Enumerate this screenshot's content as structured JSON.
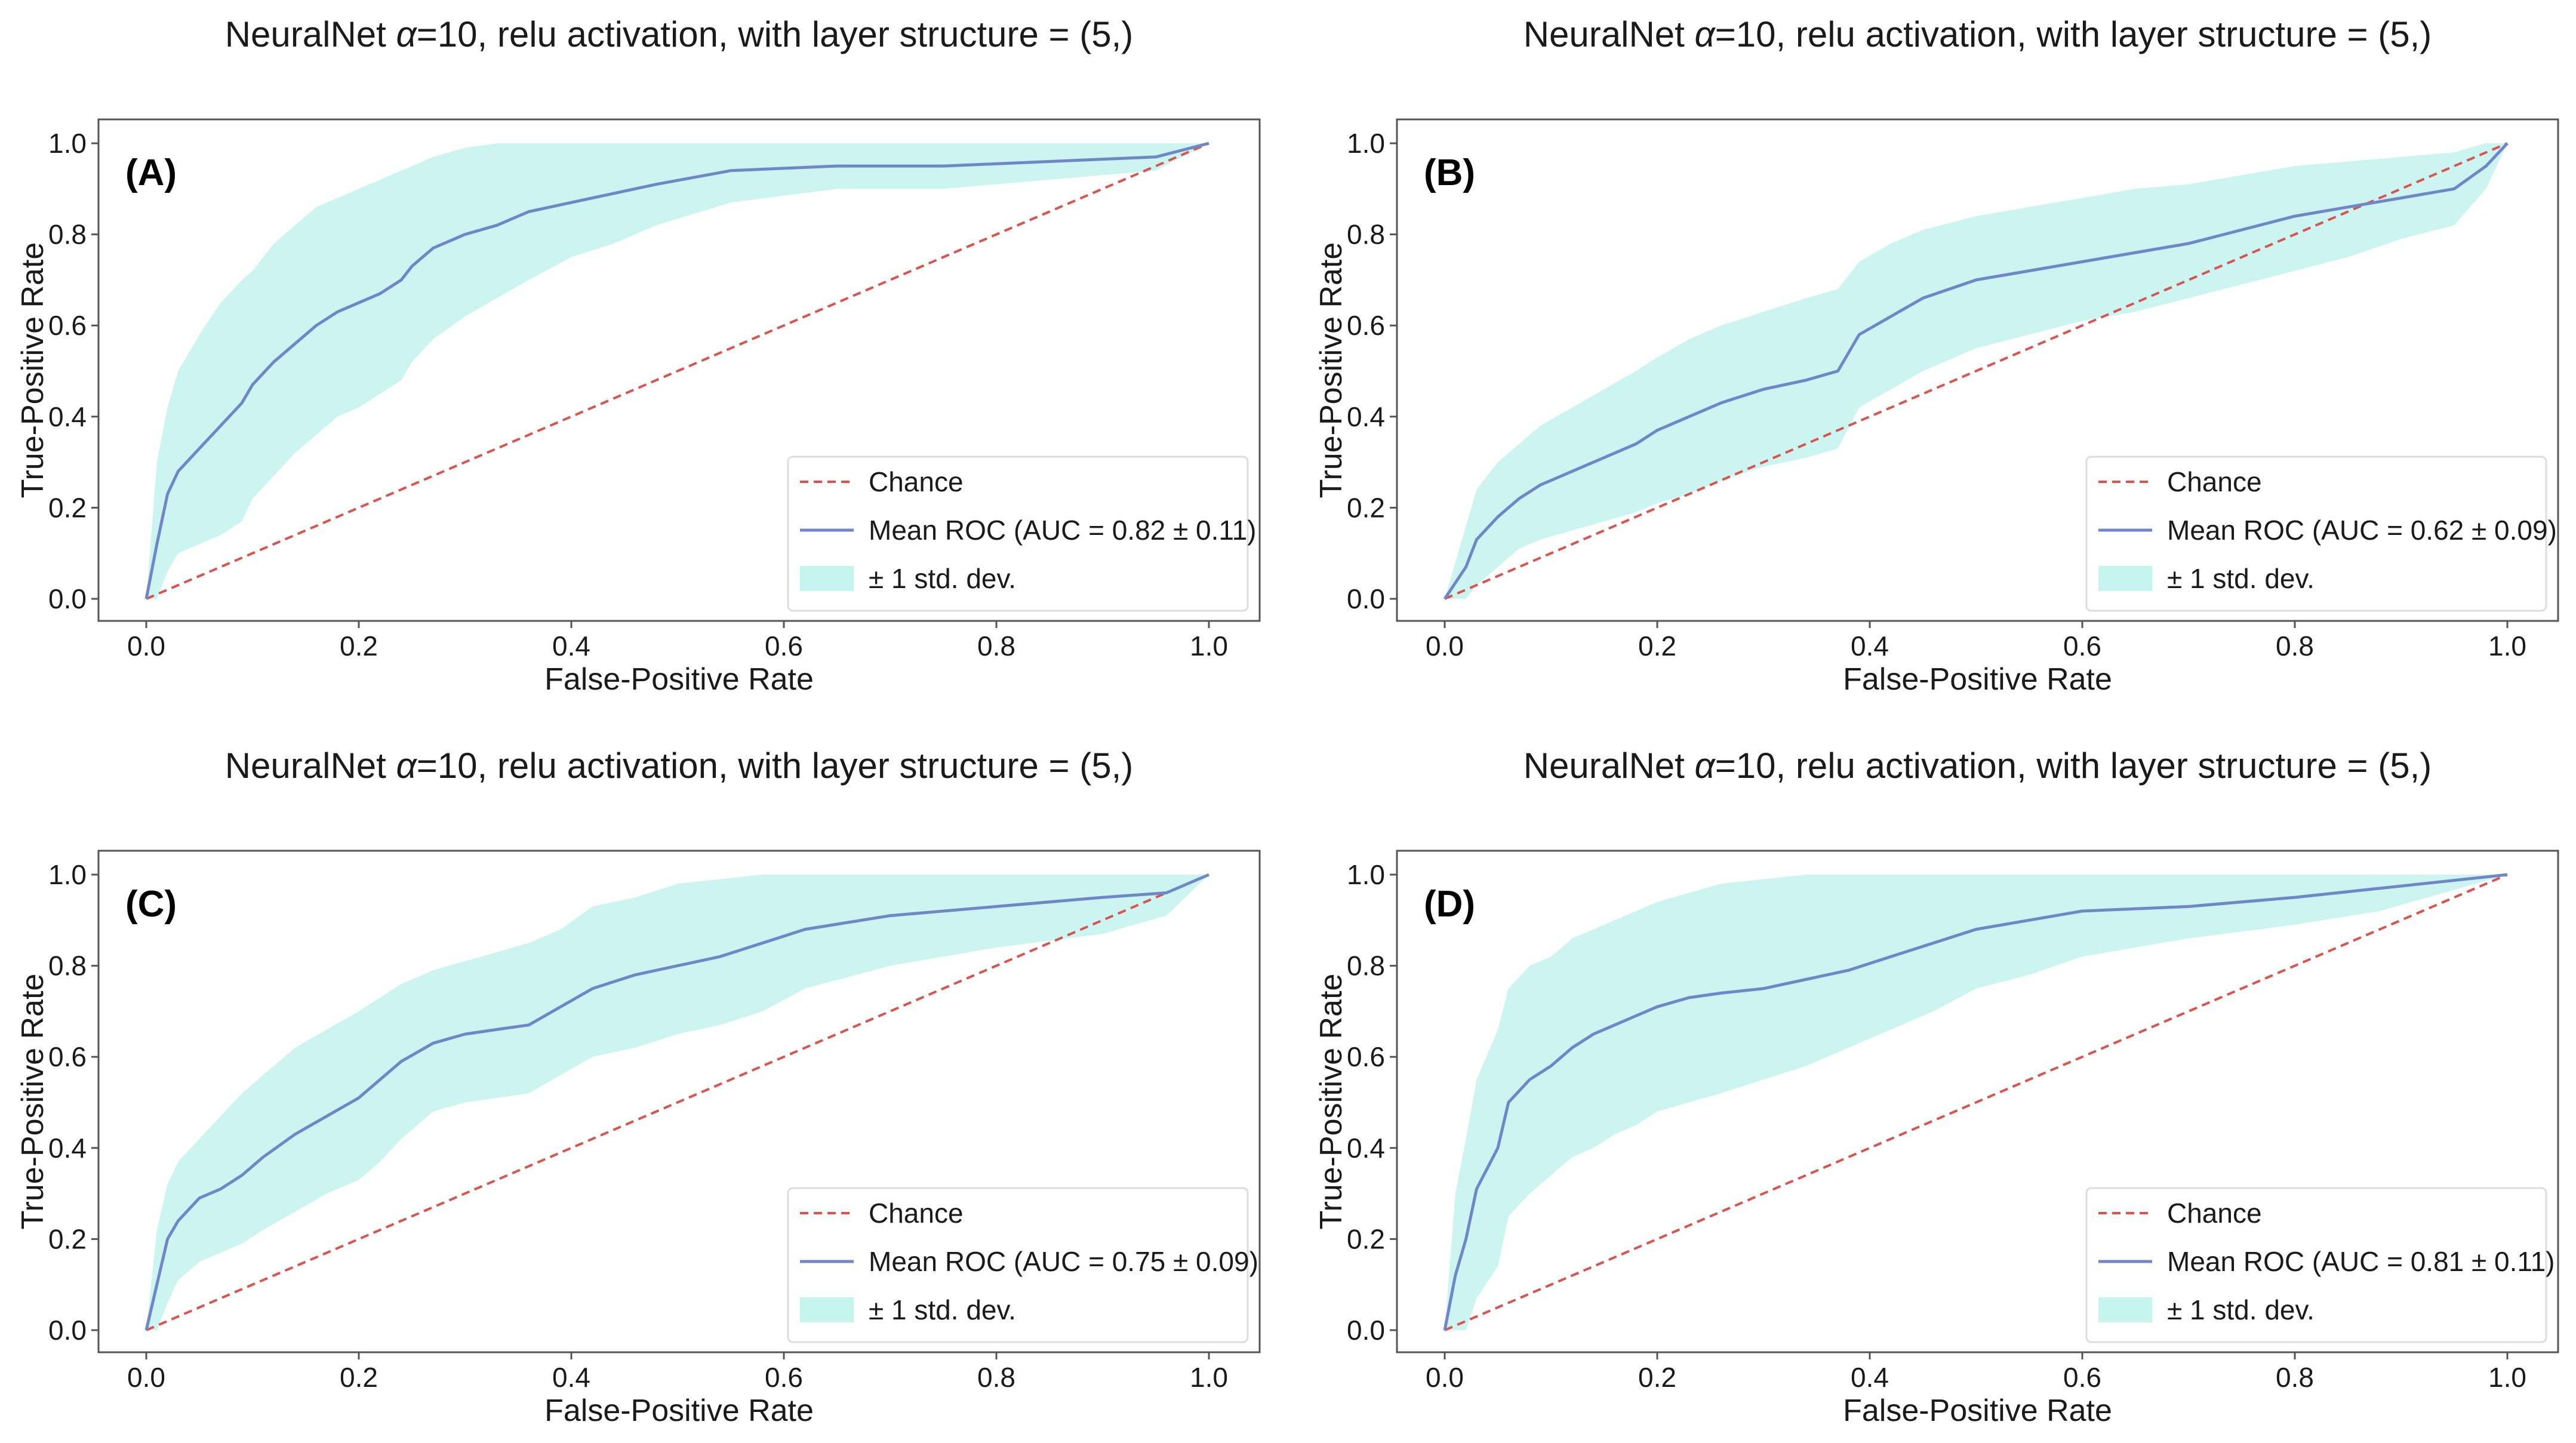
{
  "chart_data": [
    {
      "type": "line",
      "panel_label": "(A)",
      "title_prefix": "NeuralNet ",
      "title_alpha": "α",
      "title_suffix": "=10, relu activation, with layer structure = (5,)",
      "xlabel": "False-Positive Rate",
      "ylabel": "True-Positive Rate",
      "xlim": [
        0,
        1
      ],
      "ylim": [
        0,
        1
      ],
      "xticks": [
        "0.0",
        "0.2",
        "0.4",
        "0.6",
        "0.8",
        "1.0"
      ],
      "yticks": [
        "0.0",
        "0.2",
        "0.4",
        "0.6",
        "0.8",
        "1.0"
      ],
      "legend_position": "lower-right",
      "grid": false,
      "legend": {
        "chance": "Chance",
        "mean": "Mean ROC (AUC = 0.82 ± 0.11)",
        "band": "± 1 std. dev."
      },
      "colors": {
        "chance": "#d9534f",
        "mean": "#6f87c6",
        "band": "#c6f4ef"
      },
      "series": [
        {
          "name": "Chance",
          "x": [
            0,
            1
          ],
          "y": [
            0,
            1
          ]
        },
        {
          "name": "Mean ROC (AUC = 0.82 ± 0.11)",
          "x": [
            0,
            0.01,
            0.02,
            0.03,
            0.05,
            0.07,
            0.09,
            0.1,
            0.12,
            0.14,
            0.16,
            0.18,
            0.2,
            0.22,
            0.24,
            0.25,
            0.27,
            0.3,
            0.33,
            0.36,
            0.4,
            0.44,
            0.48,
            0.55,
            0.65,
            0.75,
            0.85,
            0.95,
            1.0
          ],
          "y": [
            0,
            0.12,
            0.23,
            0.28,
            0.33,
            0.38,
            0.43,
            0.47,
            0.52,
            0.56,
            0.6,
            0.63,
            0.65,
            0.67,
            0.7,
            0.73,
            0.77,
            0.8,
            0.82,
            0.85,
            0.87,
            0.89,
            0.91,
            0.94,
            0.95,
            0.95,
            0.96,
            0.97,
            1.0
          ]
        },
        {
          "name": "± 1 std. dev.",
          "x": [
            0,
            0.01,
            0.02,
            0.03,
            0.05,
            0.07,
            0.09,
            0.1,
            0.12,
            0.14,
            0.16,
            0.18,
            0.2,
            0.22,
            0.24,
            0.25,
            0.27,
            0.3,
            0.33,
            0.36,
            0.4,
            0.44,
            0.48,
            0.55,
            0.65,
            0.75,
            0.85,
            0.95,
            1.0
          ],
          "upper": [
            0,
            0.3,
            0.42,
            0.5,
            0.58,
            0.65,
            0.7,
            0.72,
            0.78,
            0.82,
            0.86,
            0.88,
            0.9,
            0.92,
            0.94,
            0.95,
            0.97,
            0.99,
            1.0,
            1.0,
            1.0,
            1.0,
            1.0,
            1.0,
            1.0,
            1.0,
            1.0,
            1.0,
            1.0
          ],
          "lower": [
            0,
            0.0,
            0.06,
            0.1,
            0.12,
            0.14,
            0.17,
            0.22,
            0.27,
            0.32,
            0.36,
            0.4,
            0.42,
            0.45,
            0.48,
            0.52,
            0.57,
            0.62,
            0.66,
            0.7,
            0.75,
            0.78,
            0.82,
            0.87,
            0.9,
            0.9,
            0.92,
            0.94,
            1.0
          ]
        }
      ]
    },
    {
      "type": "line",
      "panel_label": "(B)",
      "title_prefix": "NeuralNet ",
      "title_alpha": "α",
      "title_suffix": "=10, relu activation, with layer structure = (5,)",
      "xlabel": "False-Positive Rate",
      "ylabel": "True-Positive Rate",
      "xlim": [
        0,
        1
      ],
      "ylim": [
        0,
        1
      ],
      "xticks": [
        "0.0",
        "0.2",
        "0.4",
        "0.6",
        "0.8",
        "1.0"
      ],
      "yticks": [
        "0.0",
        "0.2",
        "0.4",
        "0.6",
        "0.8",
        "1.0"
      ],
      "legend_position": "lower-right",
      "grid": false,
      "legend": {
        "chance": "Chance",
        "mean": "Mean ROC (AUC = 0.62 ± 0.09)",
        "band": "± 1 std. dev."
      },
      "colors": {
        "chance": "#d9534f",
        "mean": "#6f87c6",
        "band": "#c6f4ef"
      },
      "series": [
        {
          "name": "Chance",
          "x": [
            0,
            1
          ],
          "y": [
            0,
            1
          ]
        },
        {
          "name": "Mean ROC (AUC = 0.62 ± 0.09)",
          "x": [
            0,
            0.02,
            0.03,
            0.05,
            0.07,
            0.09,
            0.12,
            0.15,
            0.18,
            0.2,
            0.23,
            0.26,
            0.3,
            0.34,
            0.37,
            0.39,
            0.42,
            0.45,
            0.5,
            0.55,
            0.6,
            0.65,
            0.7,
            0.75,
            0.8,
            0.85,
            0.9,
            0.95,
            0.98,
            1.0
          ],
          "y": [
            0,
            0.07,
            0.13,
            0.18,
            0.22,
            0.25,
            0.28,
            0.31,
            0.34,
            0.37,
            0.4,
            0.43,
            0.46,
            0.48,
            0.5,
            0.58,
            0.62,
            0.66,
            0.7,
            0.72,
            0.74,
            0.76,
            0.78,
            0.81,
            0.84,
            0.86,
            0.88,
            0.9,
            0.95,
            1.0
          ]
        },
        {
          "name": "± 1 std. dev.",
          "x": [
            0,
            0.02,
            0.03,
            0.05,
            0.07,
            0.09,
            0.12,
            0.15,
            0.18,
            0.2,
            0.23,
            0.26,
            0.3,
            0.34,
            0.37,
            0.39,
            0.42,
            0.45,
            0.5,
            0.55,
            0.6,
            0.65,
            0.7,
            0.75,
            0.8,
            0.85,
            0.9,
            0.95,
            0.98,
            1.0
          ],
          "upper": [
            0,
            0.16,
            0.24,
            0.3,
            0.34,
            0.38,
            0.42,
            0.46,
            0.5,
            0.53,
            0.57,
            0.6,
            0.63,
            0.66,
            0.68,
            0.74,
            0.78,
            0.81,
            0.84,
            0.86,
            0.88,
            0.9,
            0.91,
            0.93,
            0.95,
            0.96,
            0.97,
            0.98,
            1.0,
            1.0
          ],
          "lower": [
            0,
            0.0,
            0.03,
            0.07,
            0.11,
            0.13,
            0.15,
            0.17,
            0.19,
            0.21,
            0.23,
            0.26,
            0.29,
            0.31,
            0.33,
            0.42,
            0.46,
            0.5,
            0.55,
            0.58,
            0.61,
            0.63,
            0.66,
            0.69,
            0.72,
            0.75,
            0.79,
            0.82,
            0.9,
            1.0
          ]
        }
      ]
    },
    {
      "type": "line",
      "panel_label": "(C)",
      "title_prefix": "NeuralNet ",
      "title_alpha": "α",
      "title_suffix": "=10, relu activation, with layer structure = (5,)",
      "xlabel": "False-Positive Rate",
      "ylabel": "True-Positive Rate",
      "xlim": [
        0,
        1
      ],
      "ylim": [
        0,
        1
      ],
      "xticks": [
        "0.0",
        "0.2",
        "0.4",
        "0.6",
        "0.8",
        "1.0"
      ],
      "yticks": [
        "0.0",
        "0.2",
        "0.4",
        "0.6",
        "0.8",
        "1.0"
      ],
      "legend_position": "lower-right",
      "grid": false,
      "legend": {
        "chance": "Chance",
        "mean": "Mean ROC (AUC = 0.75 ± 0.09)",
        "band": "± 1 std. dev."
      },
      "colors": {
        "chance": "#d9534f",
        "mean": "#6f87c6",
        "band": "#c6f4ef"
      },
      "series": [
        {
          "name": "Chance",
          "x": [
            0,
            1
          ],
          "y": [
            0,
            1
          ]
        },
        {
          "name": "Mean ROC (AUC = 0.75 ± 0.09)",
          "x": [
            0,
            0.01,
            0.02,
            0.03,
            0.05,
            0.07,
            0.09,
            0.11,
            0.14,
            0.17,
            0.2,
            0.22,
            0.24,
            0.27,
            0.3,
            0.33,
            0.36,
            0.39,
            0.42,
            0.46,
            0.5,
            0.54,
            0.58,
            0.62,
            0.7,
            0.8,
            0.9,
            0.96,
            1.0
          ],
          "y": [
            0,
            0.1,
            0.2,
            0.24,
            0.29,
            0.31,
            0.34,
            0.38,
            0.43,
            0.47,
            0.51,
            0.55,
            0.59,
            0.63,
            0.65,
            0.66,
            0.67,
            0.71,
            0.75,
            0.78,
            0.8,
            0.82,
            0.85,
            0.88,
            0.91,
            0.93,
            0.95,
            0.96,
            1.0
          ]
        },
        {
          "name": "± 1 std. dev.",
          "x": [
            0,
            0.01,
            0.02,
            0.03,
            0.05,
            0.07,
            0.09,
            0.11,
            0.14,
            0.17,
            0.2,
            0.22,
            0.24,
            0.27,
            0.3,
            0.33,
            0.36,
            0.39,
            0.42,
            0.46,
            0.5,
            0.54,
            0.58,
            0.62,
            0.7,
            0.8,
            0.9,
            0.96,
            1.0
          ],
          "upper": [
            0,
            0.22,
            0.32,
            0.37,
            0.42,
            0.47,
            0.52,
            0.56,
            0.62,
            0.66,
            0.7,
            0.73,
            0.76,
            0.79,
            0.81,
            0.83,
            0.85,
            0.88,
            0.93,
            0.95,
            0.98,
            0.99,
            1.0,
            1.0,
            1.0,
            1.0,
            1.0,
            1.0,
            1.0
          ],
          "lower": [
            0,
            0.0,
            0.06,
            0.11,
            0.15,
            0.17,
            0.19,
            0.22,
            0.26,
            0.3,
            0.33,
            0.37,
            0.42,
            0.48,
            0.5,
            0.51,
            0.52,
            0.56,
            0.6,
            0.62,
            0.65,
            0.67,
            0.7,
            0.75,
            0.8,
            0.84,
            0.87,
            0.91,
            1.0
          ]
        }
      ]
    },
    {
      "type": "line",
      "panel_label": "(D)",
      "title_prefix": "NeuralNet ",
      "title_alpha": "α",
      "title_suffix": "=10, relu activation, with layer structure = (5,)",
      "xlabel": "False-Positive Rate",
      "ylabel": "True-Positive Rate",
      "xlim": [
        0,
        1
      ],
      "ylim": [
        0,
        1
      ],
      "xticks": [
        "0.0",
        "0.2",
        "0.4",
        "0.6",
        "0.8",
        "1.0"
      ],
      "yticks": [
        "0.0",
        "0.2",
        "0.4",
        "0.6",
        "0.8",
        "1.0"
      ],
      "legend_position": "lower-right",
      "grid": false,
      "legend": {
        "chance": "Chance",
        "mean": "Mean ROC (AUC = 0.81 ± 0.11)",
        "band": "± 1 std. dev."
      },
      "colors": {
        "chance": "#d9534f",
        "mean": "#6f87c6",
        "band": "#c6f4ef"
      },
      "series": [
        {
          "name": "Chance",
          "x": [
            0,
            1
          ],
          "y": [
            0,
            1
          ]
        },
        {
          "name": "Mean ROC (AUC = 0.81 ± 0.11)",
          "x": [
            0,
            0.01,
            0.02,
            0.03,
            0.05,
            0.06,
            0.08,
            0.1,
            0.12,
            0.14,
            0.16,
            0.18,
            0.2,
            0.23,
            0.26,
            0.3,
            0.34,
            0.38,
            0.42,
            0.46,
            0.5,
            0.55,
            0.6,
            0.7,
            0.8,
            0.88,
            1.0
          ],
          "y": [
            0,
            0.12,
            0.2,
            0.31,
            0.4,
            0.5,
            0.55,
            0.58,
            0.62,
            0.65,
            0.67,
            0.69,
            0.71,
            0.73,
            0.74,
            0.75,
            0.77,
            0.79,
            0.82,
            0.85,
            0.88,
            0.9,
            0.92,
            0.93,
            0.95,
            0.97,
            1.0
          ]
        },
        {
          "name": "± 1 std. dev.",
          "x": [
            0,
            0.01,
            0.02,
            0.03,
            0.05,
            0.06,
            0.08,
            0.1,
            0.12,
            0.14,
            0.16,
            0.18,
            0.2,
            0.23,
            0.26,
            0.3,
            0.34,
            0.38,
            0.42,
            0.46,
            0.5,
            0.55,
            0.6,
            0.7,
            0.8,
            0.88,
            1.0
          ],
          "upper": [
            0,
            0.3,
            0.42,
            0.55,
            0.66,
            0.75,
            0.8,
            0.82,
            0.86,
            0.88,
            0.9,
            0.92,
            0.94,
            0.96,
            0.98,
            0.99,
            1.0,
            1.0,
            1.0,
            1.0,
            1.0,
            1.0,
            1.0,
            1.0,
            1.0,
            1.0,
            1.0
          ],
          "lower": [
            0,
            0.0,
            0.0,
            0.07,
            0.14,
            0.25,
            0.3,
            0.34,
            0.38,
            0.4,
            0.43,
            0.45,
            0.48,
            0.5,
            0.52,
            0.55,
            0.58,
            0.62,
            0.66,
            0.7,
            0.75,
            0.78,
            0.82,
            0.86,
            0.89,
            0.92,
            1.0
          ]
        }
      ]
    }
  ]
}
